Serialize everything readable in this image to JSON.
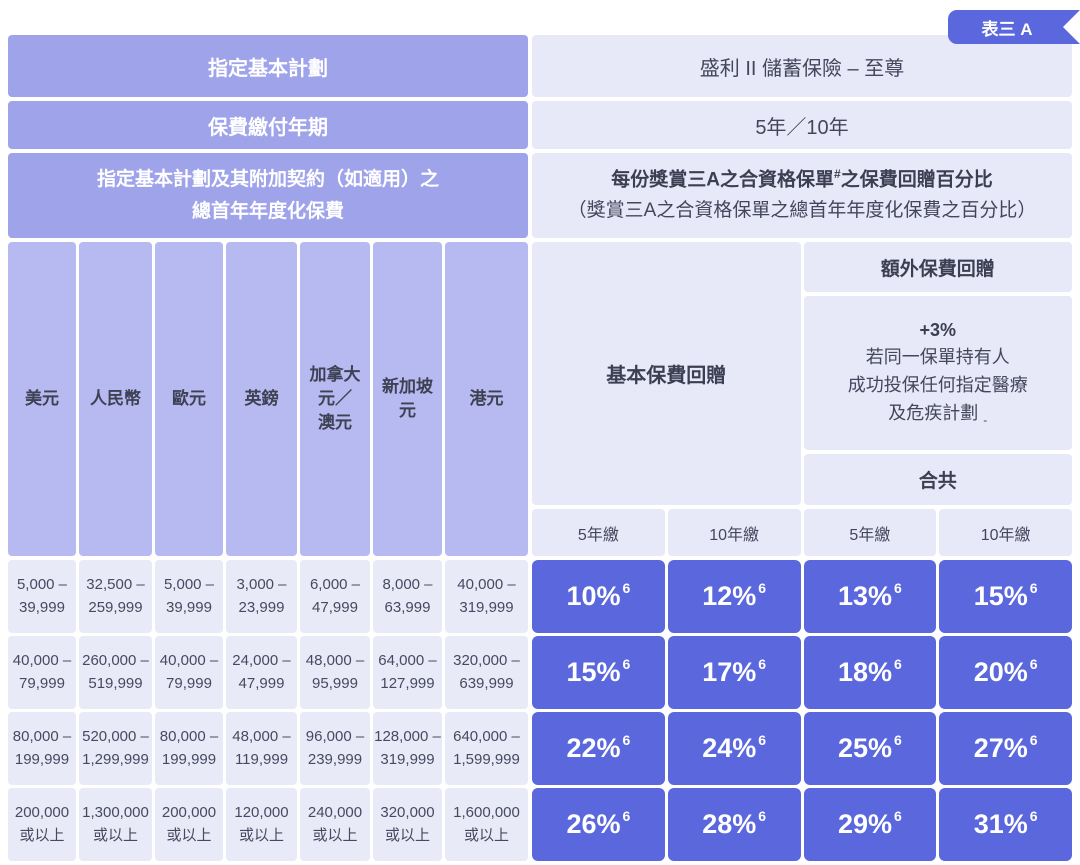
{
  "badge": "表三 A",
  "info": {
    "plan_label": "指定基本計劃",
    "plan_value": "盛利 II 儲蓄保險 – 至尊",
    "term_label": "保費繳付年期",
    "term_value": "5年／10年",
    "premium_label": "指定基本計劃及其附加契約（如適用）之\n總首年年度化保費",
    "rebate_title_pre": "每份獎賞三A之合資格保單",
    "rebate_title_sup": "#",
    "rebate_title_post": "之保費回贈百分比",
    "rebate_subtitle": "（獎賞三A之合資格保單之總首年年度化保費之百分比）"
  },
  "currencies": [
    "美元",
    "人民幣",
    "歐元",
    "英鎊",
    "加拿大\n元／\n澳元",
    "新加坡\n元",
    "港元"
  ],
  "rebate": {
    "basic_label": "基本保費回贈",
    "extra_label": "額外保費回贈",
    "extra_pct": "+3%",
    "extra_desc": "若同一保單持有人\n成功投保任何指定醫療\n及危疾計劃",
    "extra_mark": "-",
    "total_label": "合共",
    "terms": [
      "5年繳",
      "10年繳",
      "5年繳",
      "10年繳"
    ]
  },
  "footnote_sup": "6",
  "rows": [
    {
      "ranges": [
        "5,000 –\n39,999",
        "32,500 –\n259,999",
        "5,000 –\n39,999",
        "3,000 –\n23,999",
        "6,000 –\n47,999",
        "8,000 –\n63,999",
        "40,000 –\n319,999"
      ],
      "percents": [
        "10%",
        "12%",
        "13%",
        "15%"
      ]
    },
    {
      "ranges": [
        "40,000 –\n79,999",
        "260,000 –\n519,999",
        "40,000 –\n79,999",
        "24,000 –\n47,999",
        "48,000 –\n95,999",
        "64,000 –\n127,999",
        "320,000 –\n639,999"
      ],
      "percents": [
        "15%",
        "17%",
        "18%",
        "20%"
      ]
    },
    {
      "ranges": [
        "80,000 –\n199,999",
        "520,000 –\n1,299,999",
        "80,000 –\n199,999",
        "48,000 –\n119,999",
        "96,000 –\n239,999",
        "128,000 –\n319,999",
        "640,000 –\n1,599,999"
      ],
      "percents": [
        "22%",
        "24%",
        "25%",
        "27%"
      ]
    },
    {
      "ranges": [
        "200,000\n或以上",
        "1,300,000\n或以上",
        "200,000\n或以上",
        "120,000\n或以上",
        "240,000\n或以上",
        "320,000\n或以上",
        "1,600,000\n或以上"
      ],
      "percents": [
        "26%",
        "28%",
        "29%",
        "31%"
      ]
    }
  ],
  "colors": {
    "accent": "#5b67dd",
    "header_purple": "#9fa3ea",
    "column_header_purple": "#b6baf0",
    "light_cell": "#e8e9f8",
    "dark_text": "#3c3e52"
  }
}
